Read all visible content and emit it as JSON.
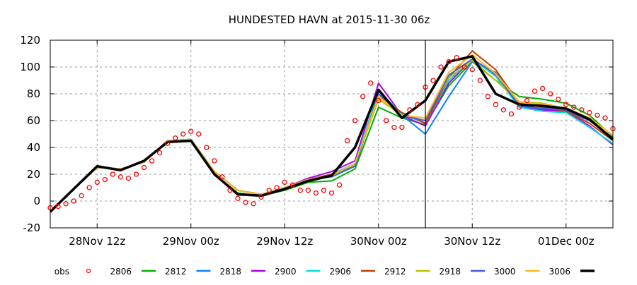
{
  "chart_data": {
    "type": "line",
    "title": "HUNDESTED HAVN at 2015-11-30 06z",
    "xlabel": "",
    "ylabel": "",
    "x_unit": "hours since 28Nov 06z",
    "xlim": [
      0,
      72
    ],
    "ylim": [
      -20,
      120
    ],
    "grid": true,
    "analysis_time_marker": 48,
    "y_ticks": [
      -20,
      0,
      20,
      40,
      60,
      80,
      100,
      120
    ],
    "x_ticks": [
      {
        "value": 6,
        "label": "28Nov 12z"
      },
      {
        "value": 18,
        "label": "29Nov 00z"
      },
      {
        "value": 30,
        "label": "29Nov 12z"
      },
      {
        "value": 42,
        "label": "30Nov 00z"
      },
      {
        "value": 54,
        "label": "30Nov 12z"
      },
      {
        "value": 66,
        "label": "01Dec 00z"
      }
    ],
    "legend_position": "bottom",
    "obs": {
      "name": "obs",
      "color": "#ff0000",
      "step_hours": 1,
      "values": [
        -5,
        -4,
        -2,
        0,
        4,
        10,
        14,
        16,
        20,
        18,
        17,
        20,
        25,
        30,
        36,
        43,
        47,
        50,
        52,
        50,
        40,
        30,
        18,
        8,
        2,
        -1,
        -2,
        3,
        8,
        10,
        14,
        12,
        8,
        8,
        6,
        8,
        6,
        12,
        45,
        60,
        78,
        88,
        75,
        60,
        55,
        55,
        68,
        72,
        85,
        90,
        100,
        104,
        107,
        100,
        98,
        90,
        78,
        72,
        68,
        65,
        70,
        75,
        82,
        84,
        80,
        76,
        72,
        70,
        68,
        66,
        64,
        62,
        54
      ]
    },
    "series_step_hours": 3,
    "series": [
      {
        "name": "2806",
        "color": "#00b000",
        "values": [
          -8,
          9,
          25,
          24,
          29,
          45,
          46,
          20,
          6,
          4,
          8,
          14,
          15,
          24,
          70,
          62,
          57,
          86,
          104,
          90,
          78,
          76,
          73,
          64,
          48
        ]
      },
      {
        "name": "2812",
        "color": "#1080ff",
        "values": [
          -8,
          9,
          25,
          24,
          29,
          45,
          46,
          22,
          8,
          5,
          10,
          16,
          18,
          26,
          80,
          64,
          50,
          78,
          104,
          96,
          73,
          68,
          67,
          60,
          47
        ]
      },
      {
        "name": "2818",
        "color": "#b000f0",
        "values": [
          -8,
          9,
          25,
          24,
          29,
          45,
          46,
          22,
          8,
          5,
          10,
          17,
          22,
          30,
          88,
          64,
          56,
          88,
          106,
          94,
          70,
          68,
          67,
          56,
          42
        ]
      },
      {
        "name": "2900",
        "color": "#00e0e0",
        "values": [
          -8,
          9,
          25,
          24,
          29,
          45,
          46,
          22,
          8,
          5,
          10,
          16,
          20,
          28,
          82,
          65,
          58,
          90,
          106,
          93,
          70,
          67,
          66,
          55,
          43
        ]
      },
      {
        "name": "2906",
        "color": "#c04000",
        "values": [
          -8,
          9,
          25,
          24,
          29,
          45,
          46,
          22,
          8,
          5,
          10,
          16,
          20,
          26,
          78,
          66,
          58,
          92,
          112,
          98,
          73,
          70,
          67,
          58,
          45
        ]
      },
      {
        "name": "2912",
        "color": "#c0c000",
        "values": [
          -8,
          9,
          25,
          24,
          29,
          45,
          46,
          22,
          8,
          5,
          10,
          16,
          19,
          27,
          76,
          64,
          62,
          92,
          105,
          90,
          74,
          73,
          69,
          62,
          49
        ]
      },
      {
        "name": "2918",
        "color": "#4060e0",
        "values": [
          -8,
          9,
          25,
          24,
          29,
          45,
          46,
          22,
          8,
          5,
          10,
          16,
          19,
          26,
          80,
          64,
          60,
          94,
          106,
          95,
          71,
          69,
          68,
          60,
          47
        ]
      },
      {
        "name": "3000",
        "color": "#ffb820",
        "values": [
          -8,
          9,
          25,
          24,
          29,
          45,
          46,
          22,
          8,
          5,
          10,
          16,
          19,
          28,
          78,
          64,
          62,
          96,
          109,
          95,
          74,
          72,
          69,
          62,
          49
        ]
      },
      {
        "name": "3006",
        "color": "#000000",
        "values": [
          -8,
          9,
          26,
          23,
          30,
          44,
          45,
          20,
          5,
          4,
          9,
          15,
          19,
          40,
          83,
          62,
          75,
          104,
          108,
          80,
          72,
          71,
          69,
          61,
          46
        ]
      }
    ]
  }
}
